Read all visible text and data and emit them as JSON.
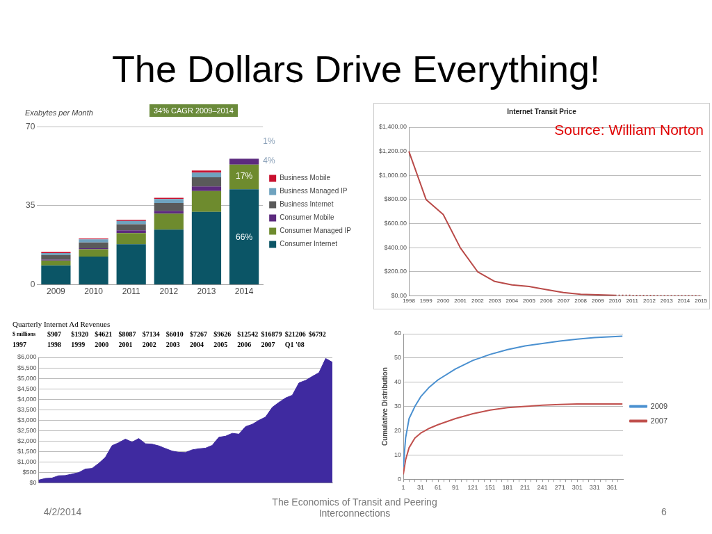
{
  "chart_data": [
    {
      "type": "other",
      "title": "The Dollars Drive Everything!",
      "annotations": [
        "4/2/2014",
        "The Economics of Transit and Peering Interconnections",
        "6"
      ]
    },
    {
      "type": "bar",
      "stacked": true,
      "ylabel": "Exabytes per Month",
      "categories": [
        "2009",
        "2010",
        "2011",
        "2012",
        "2013",
        "2014"
      ],
      "ylim": [
        0,
        70
      ],
      "yticks": [
        0,
        35,
        70
      ],
      "grid": "y",
      "legend": "right",
      "series": [
        {
          "name": "Consumer Internet",
          "color": "#0b5566",
          "values": [
            8.6,
            12.5,
            18.0,
            24.4,
            32.3,
            42.3
          ]
        },
        {
          "name": "Consumer Managed IP",
          "color": "#6e8b2e",
          "values": [
            2.1,
            3.2,
            4.9,
            7.1,
            9.2,
            10.9
          ]
        },
        {
          "name": "Consumer Mobile",
          "color": "#5c2a7e",
          "values": [
            0.4,
            0.5,
            1.2,
            1.2,
            2.0,
            2.6
          ]
        },
        {
          "name": "Business Internet",
          "color": "#5a5a5a",
          "values": [
            2.1,
            2.5,
            2.7,
            3.5,
            4.1,
            null
          ]
        },
        {
          "name": "Business Managed IP",
          "color": "#6fa3bf",
          "values": [
            0.8,
            1.4,
            1.5,
            1.8,
            2.1,
            null
          ]
        },
        {
          "name": "Business Mobile",
          "color": "#c8102e",
          "values": [
            0.6,
            0.4,
            0.5,
            0.5,
            0.9,
            null
          ]
        }
      ],
      "annotations": [
        "34% CAGR 2009–2014",
        "66%",
        "17%",
        "4%",
        "1%"
      ]
    },
    {
      "type": "line",
      "title": "Internet Transit Price",
      "categories": [
        "1998",
        "1999",
        "2000",
        "2001",
        "2002",
        "2003",
        "2004",
        "2005",
        "2006",
        "2007",
        "2008",
        "2009",
        "2010",
        "2011",
        "2012",
        "2013",
        "2014",
        "2015"
      ],
      "ylim": [
        0,
        1400
      ],
      "yticks": [
        {
          "value": 0,
          "label": "$0.00"
        },
        {
          "value": 200,
          "label": "$200.00"
        },
        {
          "value": 400,
          "label": "$400.00"
        },
        {
          "value": 600,
          "label": "$600.00"
        },
        {
          "value": 800,
          "label": "$800.00"
        },
        {
          "value": 1000,
          "label": "$1,000.00"
        },
        {
          "value": 1200,
          "label": "$1,200.00"
        },
        {
          "value": 1400,
          "label": "$1,400.00"
        }
      ],
      "grid": "y",
      "series": [
        {
          "color": "#b94a48",
          "line_style": "solid",
          "values": [
            1200,
            800,
            675,
            397,
            200,
            119,
            90,
            77,
            52,
            27,
            13,
            8,
            4,
            null,
            null,
            null,
            null,
            null
          ]
        },
        {
          "color": "#b94a48",
          "line_style": "dotted",
          "values": [
            null,
            null,
            null,
            null,
            null,
            null,
            null,
            null,
            null,
            null,
            null,
            null,
            4,
            3,
            2,
            1,
            1,
            0
          ]
        }
      ],
      "annotations": [
        "Source: William Norton"
      ]
    },
    {
      "type": "area",
      "title": "Quarterly Internet Ad Revenues",
      "categories": [
        null,
        null,
        null,
        null,
        null,
        null,
        null,
        null,
        null,
        null,
        null,
        null,
        null,
        null,
        null,
        null,
        null,
        null,
        null,
        null,
        null,
        null,
        null,
        null,
        null,
        null,
        null,
        null,
        null,
        null,
        null,
        null,
        null,
        null,
        null,
        null,
        null,
        null,
        null,
        null,
        null,
        null,
        null,
        null,
        null
      ],
      "ylim": [
        0,
        6000
      ],
      "yticks": [
        {
          "value": 0,
          "label": "$0"
        },
        {
          "value": 500,
          "label": "$500"
        },
        {
          "value": 1000,
          "label": "$1,000"
        },
        {
          "value": 1500,
          "label": "$1,500"
        },
        {
          "value": 2000,
          "label": "$2,000"
        },
        {
          "value": 2500,
          "label": "$2,500"
        },
        {
          "value": 3000,
          "label": "$3,000"
        },
        {
          "value": 3500,
          "label": "$3,500"
        },
        {
          "value": 4000,
          "label": "$4,000"
        },
        {
          "value": 4500,
          "label": "$4,500"
        },
        {
          "value": 5000,
          "label": "$5,000"
        },
        {
          "value": 5500,
          "label": "$5,500"
        },
        {
          "value": 6000,
          "label": "$6,000"
        }
      ],
      "grid": "y",
      "values": [
        130,
        210,
        230,
        340,
        350,
        420,
        490,
        660,
        690,
        930,
        1220,
        1780,
        1920,
        2090,
        1950,
        2120,
        1870,
        1850,
        1770,
        1640,
        1520,
        1460,
        1450,
        1580,
        1630,
        1660,
        1790,
        2180,
        2230,
        2370,
        2330,
        2690,
        2800,
        2990,
        3150,
        3610,
        3850,
        4060,
        4190,
        4780,
        4900,
        5090,
        5270,
        5950,
        5770
      ],
      "color": "#3f2aa0",
      "annotations": [
        "$ millions",
        "1997",
        "$907",
        "1998",
        "$1920",
        "1999",
        "$4621",
        "2000",
        "$8087",
        "2001",
        "$7134",
        "2002",
        "$6010",
        "2003",
        "$7267",
        "2004",
        "$9626",
        "2005",
        "$12542",
        "2006",
        "$16879",
        "2007",
        "$21206",
        "Q1 '08",
        "$6792"
      ]
    },
    {
      "type": "line",
      "ylabel": "Cumulative Distribution",
      "xlim": [
        1,
        380
      ],
      "xticks": [
        1,
        {
          "value": 11,
          "label": null
        },
        {
          "value": 21,
          "label": null
        },
        31,
        {
          "value": 41,
          "label": null
        },
        {
          "value": 51,
          "label": null
        },
        61,
        {
          "value": 71,
          "label": null
        },
        {
          "value": 81,
          "label": null
        },
        91,
        {
          "value": 101,
          "label": null
        },
        {
          "value": 111,
          "label": null
        },
        121,
        {
          "value": 131,
          "label": null
        },
        {
          "value": 141,
          "label": null
        },
        151,
        {
          "value": 161,
          "label": null
        },
        {
          "value": 171,
          "label": null
        },
        181,
        {
          "value": 191,
          "label": null
        },
        {
          "value": 201,
          "label": null
        },
        211,
        {
          "value": 221,
          "label": null
        },
        {
          "value": 231,
          "label": null
        },
        241,
        {
          "value": 251,
          "label": null
        },
        {
          "value": 261,
          "label": null
        },
        271,
        {
          "value": 281,
          "label": null
        },
        {
          "value": 291,
          "label": null
        },
        301,
        {
          "value": 311,
          "label": null
        },
        {
          "value": 321,
          "label": null
        },
        331,
        {
          "value": 341,
          "label": null
        },
        {
          "value": 351,
          "label": null
        },
        361,
        {
          "value": 371,
          "label": null
        }
      ],
      "ylim": [
        0,
        60
      ],
      "yticks": [
        0,
        10,
        20,
        30,
        40,
        50,
        60
      ],
      "grid": "y",
      "legend": "right",
      "x": [
        1,
        5,
        11,
        21,
        31,
        46,
        61,
        91,
        121,
        151,
        181,
        211,
        241,
        271,
        301,
        331,
        379
      ],
      "series": [
        {
          "name": "2009",
          "color": "#4a90d0",
          "values": [
            5,
            17,
            25,
            30,
            34,
            38,
            41,
            45.5,
            49,
            51.5,
            53.5,
            55,
            56,
            57,
            57.8,
            58.4,
            59
          ]
        },
        {
          "name": "2007",
          "color": "#c0504d",
          "values": [
            2,
            8,
            13,
            17,
            19,
            21,
            22.5,
            25,
            27,
            28.5,
            29.5,
            30,
            30.5,
            30.8,
            31,
            31,
            31
          ]
        }
      ]
    }
  ]
}
